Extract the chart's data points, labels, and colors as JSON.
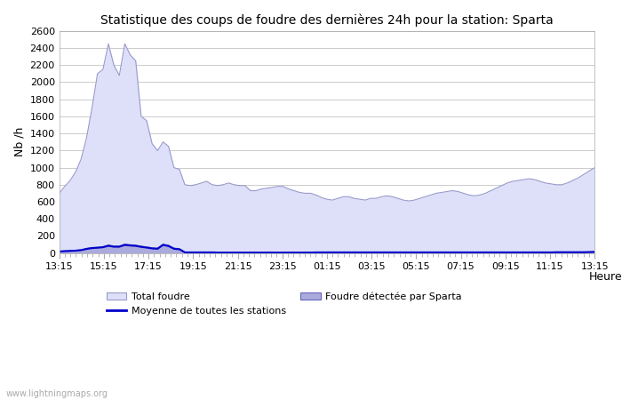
{
  "title": "Statistique des coups de foudre des dernières 24h pour la station: Sparta",
  "xlabel": "Heure",
  "ylabel": "Nb /h",
  "ylim": [
    0,
    2600
  ],
  "yticks": [
    0,
    200,
    400,
    600,
    800,
    1000,
    1200,
    1400,
    1600,
    1800,
    2000,
    2200,
    2400,
    2600
  ],
  "xtick_labels": [
    "13:15",
    "15:15",
    "17:15",
    "19:15",
    "21:15",
    "23:15",
    "01:15",
    "03:15",
    "05:15",
    "07:15",
    "09:15",
    "11:15",
    "13:15"
  ],
  "background_color": "#ffffff",
  "plot_bg_color": "#ffffff",
  "grid_color": "#cccccc",
  "fill_total_color": "#dde0f8",
  "fill_total_edge_color": "#9999cc",
  "fill_sparta_color": "#aaaadd",
  "fill_sparta_edge_color": "#6666bb",
  "line_moyenne_color": "#0000cc",
  "watermark": "www.lightningmaps.org",
  "legend_items": [
    "Total foudre",
    "Moyenne de toutes les stations",
    "Foudre détectée par Sparta"
  ],
  "total_foudre": [
    700,
    780,
    850,
    950,
    1100,
    1350,
    1700,
    2100,
    2150,
    2450,
    2200,
    2080,
    2450,
    2320,
    2250,
    1600,
    1550,
    1280,
    1200,
    1300,
    1250,
    1000,
    980,
    800,
    790,
    800,
    820,
    840,
    800,
    790,
    800,
    820,
    800,
    790,
    790,
    730,
    730,
    750,
    760,
    770,
    780,
    780,
    750,
    730,
    710,
    700,
    700,
    680,
    650,
    630,
    620,
    640,
    660,
    660,
    640,
    630,
    620,
    640,
    640,
    660,
    670,
    660,
    640,
    620,
    610,
    620,
    640,
    660,
    680,
    700,
    710,
    720,
    730,
    720,
    700,
    680,
    670,
    680,
    700,
    730,
    760,
    790,
    820,
    840,
    850,
    860,
    870,
    860,
    840,
    820,
    810,
    800,
    800,
    820,
    850,
    880,
    920,
    960,
    1000
  ],
  "sparta_detected": [
    20,
    25,
    28,
    32,
    38,
    55,
    65,
    68,
    75,
    95,
    82,
    82,
    105,
    98,
    93,
    82,
    72,
    62,
    58,
    105,
    92,
    58,
    52,
    10,
    10,
    10,
    10,
    10,
    10,
    8,
    8,
    8,
    8,
    8,
    8,
    8,
    8,
    8,
    8,
    8,
    8,
    8,
    8,
    8,
    8,
    8,
    8,
    8,
    8,
    8,
    8,
    8,
    8,
    8,
    8,
    8,
    8,
    8,
    8,
    8,
    8,
    8,
    8,
    8,
    8,
    8,
    8,
    8,
    8,
    8,
    8,
    8,
    8,
    8,
    8,
    8,
    8,
    8,
    8,
    8,
    8,
    8,
    8,
    8,
    8,
    8,
    8,
    8,
    8,
    8,
    8,
    8,
    8,
    8,
    8,
    8,
    8,
    8,
    8
  ],
  "moyenne": [
    18,
    22,
    25,
    28,
    34,
    48,
    58,
    62,
    68,
    85,
    74,
    74,
    95,
    88,
    84,
    72,
    64,
    54,
    50,
    95,
    82,
    50,
    44,
    8,
    8,
    8,
    8,
    8,
    8,
    6,
    6,
    6,
    6,
    6,
    6,
    6,
    6,
    6,
    6,
    6,
    6,
    6,
    6,
    6,
    6,
    6,
    6,
    8,
    8,
    8,
    8,
    8,
    8,
    8,
    8,
    8,
    8,
    8,
    8,
    8,
    8,
    8,
    8,
    8,
    8,
    8,
    8,
    8,
    8,
    8,
    8,
    8,
    8,
    8,
    8,
    8,
    8,
    8,
    8,
    8,
    8,
    8,
    8,
    8,
    8,
    8,
    8,
    8,
    8,
    8,
    8,
    10,
    10,
    10,
    10,
    10,
    10,
    12,
    14
  ]
}
